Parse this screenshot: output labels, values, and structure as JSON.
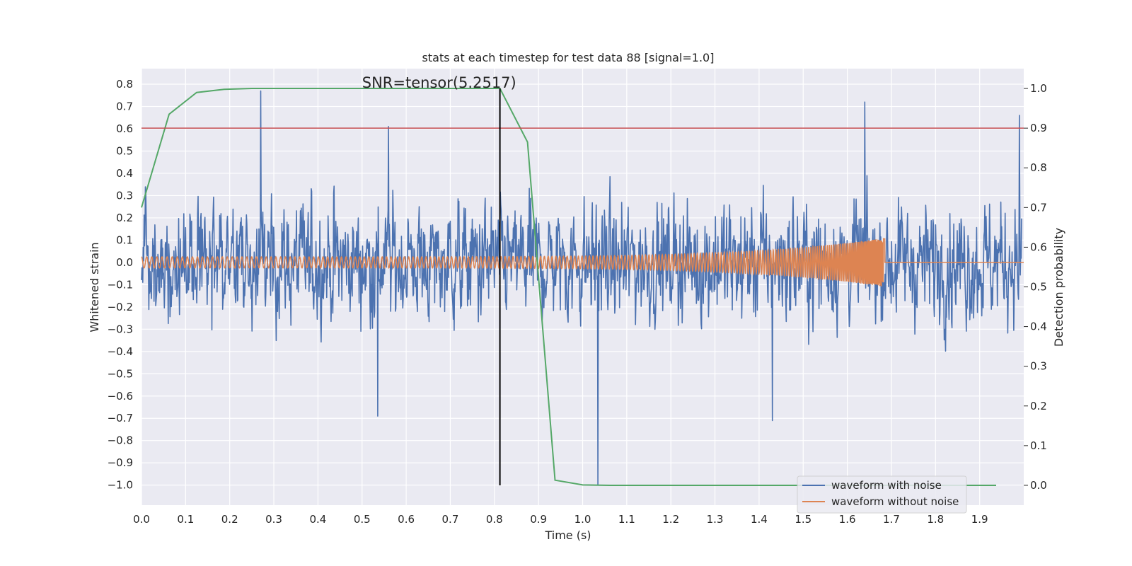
{
  "chart_data": {
    "type": "line",
    "title": "stats at each timestep for test data 88 [signal=1.0]",
    "xlabel": "Time (s)",
    "ylabel": "Whitened strain",
    "ylabel_right": "Detection probability",
    "xlim": [
      0.0,
      2.0
    ],
    "ylim": [
      -1.09,
      0.87
    ],
    "ylim_right": [
      -0.05,
      1.05
    ],
    "x_ticks": [
      "0.0",
      "0.1",
      "0.2",
      "0.3",
      "0.4",
      "0.5",
      "0.6",
      "0.7",
      "0.8",
      "0.9",
      "1.0",
      "1.1",
      "1.2",
      "1.3",
      "1.4",
      "1.5",
      "1.6",
      "1.7",
      "1.8",
      "1.9"
    ],
    "x_tick_values": [
      0.0,
      0.1,
      0.2,
      0.3,
      0.4,
      0.5,
      0.6,
      0.7,
      0.8,
      0.9,
      1.0,
      1.1,
      1.2,
      1.3,
      1.4,
      1.5,
      1.6,
      1.7,
      1.8,
      1.9
    ],
    "y_ticks": [
      "0.8",
      "0.7",
      "0.6",
      "0.5",
      "0.4",
      "0.3",
      "0.2",
      "0.1",
      "0.0",
      "−0.1",
      "−0.2",
      "−0.3",
      "−0.4",
      "−0.5",
      "−0.6",
      "−0.7",
      "−0.8",
      "−0.9",
      "−1.0"
    ],
    "y_tick_values": [
      0.8,
      0.7,
      0.6,
      0.5,
      0.4,
      0.3,
      0.2,
      0.1,
      0.0,
      -0.1,
      -0.2,
      -0.3,
      -0.4,
      -0.5,
      -0.6,
      -0.7,
      -0.8,
      -0.9,
      -1.0
    ],
    "y_right_ticks": [
      "1.0",
      "0.9",
      "0.8",
      "0.7",
      "0.6",
      "0.5",
      "0.4",
      "0.3",
      "0.2",
      "0.1",
      "0.0"
    ],
    "y_right_tick_values": [
      1.0,
      0.9,
      0.8,
      0.7,
      0.6,
      0.5,
      0.4,
      0.3,
      0.2,
      0.1,
      0.0
    ],
    "grid": true,
    "legend_placement": "lower-right",
    "series": [
      {
        "name": "waveform with noise",
        "color": "#4c72b0",
        "axis": "left",
        "description_type": "noisy",
        "x_range": [
          0.0,
          1.996
        ],
        "amplitude_range": [
          -1.0,
          0.77
        ],
        "notable_points": [
          {
            "x": 0.27,
            "y": 0.77
          },
          {
            "x": 0.56,
            "y": 0.61
          },
          {
            "x": 1.035,
            "y": -1.0
          },
          {
            "x": 1.64,
            "y": 0.72
          },
          {
            "x": 1.99,
            "y": 0.66
          },
          {
            "x": 0.535,
            "y": -0.69
          },
          {
            "x": 1.43,
            "y": -0.71
          }
        ]
      },
      {
        "name": "waveform without noise",
        "color": "#dd8452",
        "axis": "left",
        "description_type": "chirp",
        "x_range": [
          0.0,
          2.0
        ],
        "chirp_end": 1.685,
        "amplitude_start": 0.025,
        "amplitude_peak": 0.11
      },
      {
        "name": "",
        "color": "#55a868",
        "axis": "right",
        "x": [
          0.0,
          0.0625,
          0.125,
          0.1875,
          0.25,
          0.3125,
          0.375,
          0.4375,
          0.5,
          0.5625,
          0.625,
          0.6875,
          0.75,
          0.8125,
          0.875,
          0.9375,
          1.0,
          1.0625,
          1.125,
          1.1875,
          1.25,
          1.3125,
          1.375,
          1.4375,
          1.5,
          1.5625,
          1.625,
          1.6875,
          1.75,
          1.8125,
          1.875,
          1.9375
        ],
        "values": [
          0.7,
          0.935,
          0.99,
          0.998,
          1.0,
          1.0,
          1.0,
          1.0,
          1.0,
          1.0,
          1.0,
          1.0,
          1.0,
          1.0,
          0.865,
          0.013,
          0.001,
          0.0,
          0.0,
          0.0,
          0.0,
          0.0,
          0.0,
          0.0,
          0.0,
          0.0,
          0.0,
          0.0,
          0.0,
          0.0,
          0.0,
          0.0
        ]
      }
    ],
    "threshold_line": {
      "axis": "right",
      "value": 0.9,
      "color": "#c44e52"
    },
    "marker_line": {
      "x": 0.8125,
      "y_from_right": 0.0,
      "y_to_right": 1.0,
      "color": "#000000"
    },
    "annotation": {
      "text": "SNR=tensor(5.2517)",
      "x": 0.5,
      "y_right": 1.0
    }
  }
}
